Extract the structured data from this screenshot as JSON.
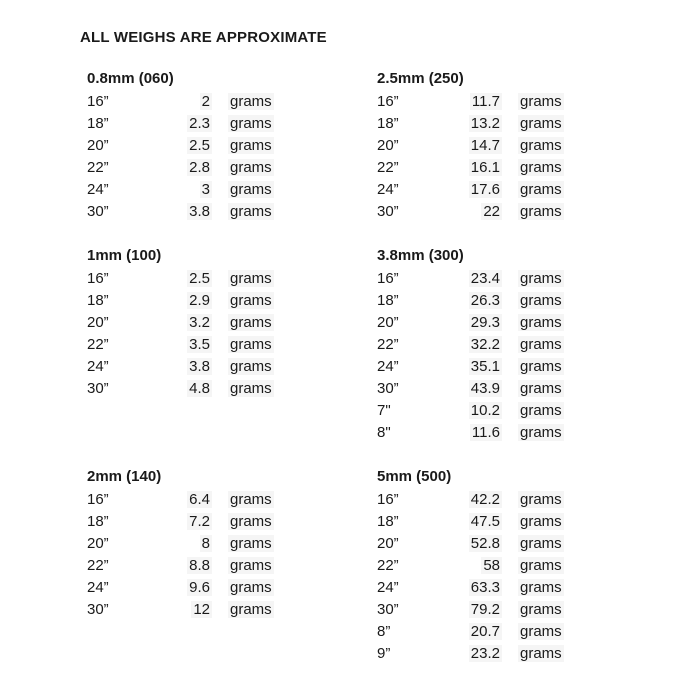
{
  "title": "ALL WEIGHS ARE APPROXIMATE",
  "unit_label": "grams",
  "colors": {
    "text": "#1a1a1a",
    "background": "#ffffff",
    "cell_highlight": "#f5f5f5"
  },
  "sections": [
    {
      "header": "0.8mm (060)",
      "rows": [
        {
          "length": "16”",
          "value": "2"
        },
        {
          "length": "18”",
          "value": "2.3"
        },
        {
          "length": "20”",
          "value": "2.5"
        },
        {
          "length": "22”",
          "value": "2.8"
        },
        {
          "length": "24”",
          "value": "3"
        },
        {
          "length": "30”",
          "value": "3.8"
        }
      ]
    },
    {
      "header": "2.5mm (250)",
      "rows": [
        {
          "length": "16”",
          "value": "11.7"
        },
        {
          "length": "18”",
          "value": "13.2"
        },
        {
          "length": "20”",
          "value": "14.7"
        },
        {
          "length": "22”",
          "value": "16.1"
        },
        {
          "length": "24”",
          "value": "17.6"
        },
        {
          "length": "30”",
          "value": "22"
        }
      ]
    },
    {
      "header": "1mm (100)",
      "rows": [
        {
          "length": "16”",
          "value": "2.5"
        },
        {
          "length": "18”",
          "value": "2.9"
        },
        {
          "length": "20”",
          "value": "3.2"
        },
        {
          "length": "22”",
          "value": "3.5"
        },
        {
          "length": "24”",
          "value": "3.8"
        },
        {
          "length": "30”",
          "value": "4.8"
        }
      ]
    },
    {
      "header": "3.8mm (300)",
      "rows": [
        {
          "length": "16”",
          "value": "23.4"
        },
        {
          "length": "18”",
          "value": "26.3"
        },
        {
          "length": "20”",
          "value": "29.3"
        },
        {
          "length": "22”",
          "value": "32.2"
        },
        {
          "length": "24”",
          "value": "35.1"
        },
        {
          "length": "30”",
          "value": "43.9"
        },
        {
          "length": "7\"",
          "value": "10.2"
        },
        {
          "length": "8\"",
          "value": "11.6"
        }
      ]
    },
    {
      "header": "2mm (140)",
      "rows": [
        {
          "length": "16”",
          "value": "6.4"
        },
        {
          "length": "18”",
          "value": "7.2"
        },
        {
          "length": "20”",
          "value": "8"
        },
        {
          "length": "22”",
          "value": "8.8"
        },
        {
          "length": "24”",
          "value": "9.6"
        },
        {
          "length": "30”",
          "value": "12"
        }
      ]
    },
    {
      "header": "5mm (500)",
      "rows": [
        {
          "length": "16”",
          "value": "42.2"
        },
        {
          "length": "18”",
          "value": "47.5"
        },
        {
          "length": "20”",
          "value": "52.8"
        },
        {
          "length": "22”",
          "value": "58"
        },
        {
          "length": "24”",
          "value": "63.3"
        },
        {
          "length": "30”",
          "value": "79.2"
        },
        {
          "length": "8”",
          "value": "20.7"
        },
        {
          "length": "9”",
          "value": "23.2"
        }
      ]
    }
  ]
}
